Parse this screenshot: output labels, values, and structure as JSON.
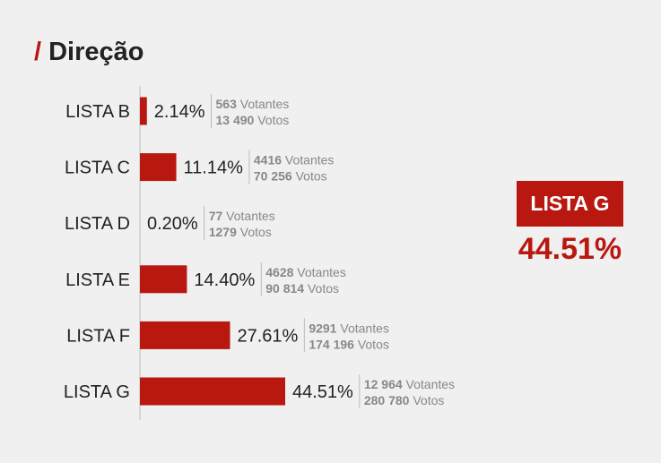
{
  "header": {
    "slash": "/",
    "title": "Direção"
  },
  "winner": {
    "label": "LISTA G",
    "value": "44.51%"
  },
  "colors": {
    "bar": "#b81810",
    "accent": "#b81810",
    "axis": "#bbbbbb",
    "label": "#222222",
    "meta": "#888888"
  },
  "chart_data": {
    "type": "bar",
    "orientation": "horizontal",
    "title": "Direção",
    "categories": [
      "LISTA B",
      "LISTA C",
      "LISTA D",
      "LISTA E",
      "LISTA F",
      "LISTA G"
    ],
    "values": [
      2.14,
      11.14,
      0.2,
      14.4,
      27.61,
      44.51
    ],
    "value_labels": [
      "2.14%",
      "11.14%",
      "0.20%",
      "14.40%",
      "27.61%",
      "44.51%"
    ],
    "voters": [
      "563",
      "4416",
      "77",
      "4628",
      "9291",
      "12 964"
    ],
    "votes": [
      "13 490",
      "70 256",
      "1279",
      "90 814",
      "174 196",
      "280 780"
    ],
    "voters_suffix": "Votantes",
    "votes_suffix": "Votos",
    "xlabel": "",
    "ylabel": "",
    "xlim": [
      0,
      44.51
    ],
    "grid": false,
    "legend": "none"
  }
}
